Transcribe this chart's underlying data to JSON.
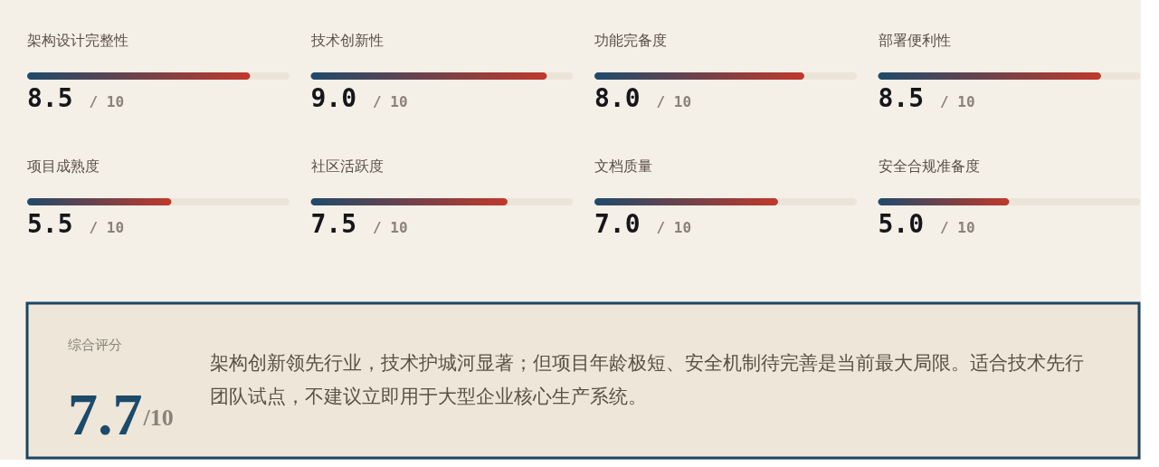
{
  "chart_data": [
    {
      "type": "bar",
      "orientation": "horizontal",
      "stacked": true,
      "categories": [
        "架构设计完整性"
      ],
      "series": [
        {
          "color": "#c0392b",
          "values": [
            8.5
          ],
          "value_labels": [
            "8.5"
          ]
        },
        {
          "color": "#ebe5d9",
          "values": [
            1.5
          ]
        }
      ],
      "totals": [
        "/ 10"
      ],
      "tick_labels": "y"
    },
    {
      "type": "bar",
      "orientation": "horizontal",
      "stacked": true,
      "categories": [
        "技术创新性"
      ],
      "series": [
        {
          "color": "#c0392b",
          "values": [
            9.0
          ],
          "value_labels": [
            "9.0"
          ]
        },
        {
          "color": "#ebe5d9",
          "values": [
            1.0
          ]
        }
      ],
      "totals": [
        "/ 10"
      ],
      "tick_labels": "y"
    },
    {
      "type": "bar",
      "orientation": "horizontal",
      "stacked": true,
      "categories": [
        "功能完备度"
      ],
      "series": [
        {
          "color": "#c0392b",
          "values": [
            8.0
          ],
          "value_labels": [
            "8.0"
          ]
        },
        {
          "color": "#ebe5d9",
          "values": [
            2.0
          ]
        }
      ],
      "totals": [
        "/ 10"
      ],
      "tick_labels": "y"
    },
    {
      "type": "bar",
      "orientation": "horizontal",
      "stacked": true,
      "categories": [
        "部署便利性"
      ],
      "series": [
        {
          "color": "#c0392b",
          "values": [
            8.5
          ],
          "value_labels": [
            "8.5"
          ]
        },
        {
          "color": "#ebe5d9",
          "values": [
            1.5
          ]
        }
      ],
      "totals": [
        "/ 10"
      ],
      "tick_labels": "y"
    },
    {
      "type": "bar",
      "orientation": "horizontal",
      "stacked": true,
      "categories": [
        "项目成熟度"
      ],
      "series": [
        {
          "color": "#c0392b",
          "values": [
            5.5
          ],
          "value_labels": [
            "5.5"
          ]
        },
        {
          "color": "#ebe5d9",
          "values": [
            4.5
          ]
        }
      ],
      "totals": [
        "/ 10"
      ],
      "tick_labels": "y"
    },
    {
      "type": "bar",
      "orientation": "horizontal",
      "stacked": true,
      "categories": [
        "社区活跃度"
      ],
      "series": [
        {
          "color": "#c0392b",
          "values": [
            7.5
          ],
          "value_labels": [
            "7.5"
          ]
        },
        {
          "color": "#ebe5d9",
          "values": [
            2.5
          ]
        }
      ],
      "totals": [
        "/ 10"
      ],
      "tick_labels": "y"
    },
    {
      "type": "bar",
      "orientation": "horizontal",
      "stacked": true,
      "categories": [
        "文档质量"
      ],
      "series": [
        {
          "color": "#c0392b",
          "values": [
            7.0
          ],
          "value_labels": [
            "7.0"
          ]
        },
        {
          "color": "#ebe5d9",
          "values": [
            3.0
          ]
        }
      ],
      "totals": [
        "/ 10"
      ],
      "tick_labels": "y"
    },
    {
      "type": "bar",
      "orientation": "horizontal",
      "stacked": true,
      "categories": [
        "安全合规准备度"
      ],
      "series": [
        {
          "color": "#c0392b",
          "values": [
            5.0
          ],
          "value_labels": [
            "5.0"
          ]
        },
        {
          "color": "#ebe5d9",
          "values": [
            5.0
          ]
        }
      ],
      "totals": [
        "/ 10"
      ],
      "tick_labels": "y"
    },
    {
      "type": "other",
      "title": "综合评分",
      "annotations": [
        "7.7/10",
        "架构创新领先行业，技术护城河显著；但项目年龄极短、安全机制待完善是当前最大局限。适合技术先行团队试点，不建议立即用于大型企业核心生产系统。"
      ]
    }
  ]
}
